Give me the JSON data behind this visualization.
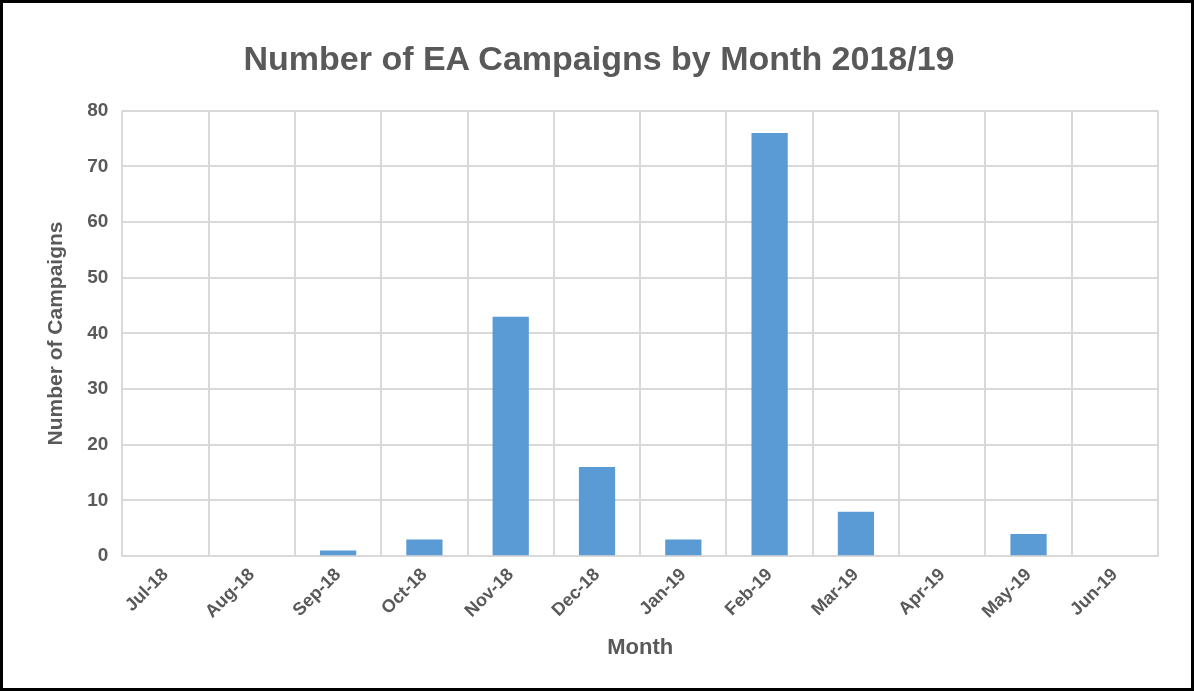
{
  "chart_data": {
    "type": "bar",
    "title": "Number of EA Campaigns by Month 2018/19",
    "xlabel": "Month",
    "ylabel": "Number of Campaigns",
    "categories": [
      "Jul-18",
      "Aug-18",
      "Sep-18",
      "Oct-18",
      "Nov-18",
      "Dec-18",
      "Jan-19",
      "Feb-19",
      "Mar-19",
      "Apr-19",
      "May-19",
      "Jun-19"
    ],
    "values": [
      0,
      0,
      1,
      3,
      43,
      16,
      3,
      76,
      8,
      0,
      4,
      0
    ],
    "color": "#5b9bd5",
    "ylim": [
      0,
      80
    ],
    "yticks": [
      0,
      10,
      20,
      30,
      40,
      50,
      60,
      70,
      80
    ],
    "grid": true,
    "legend": false
  }
}
